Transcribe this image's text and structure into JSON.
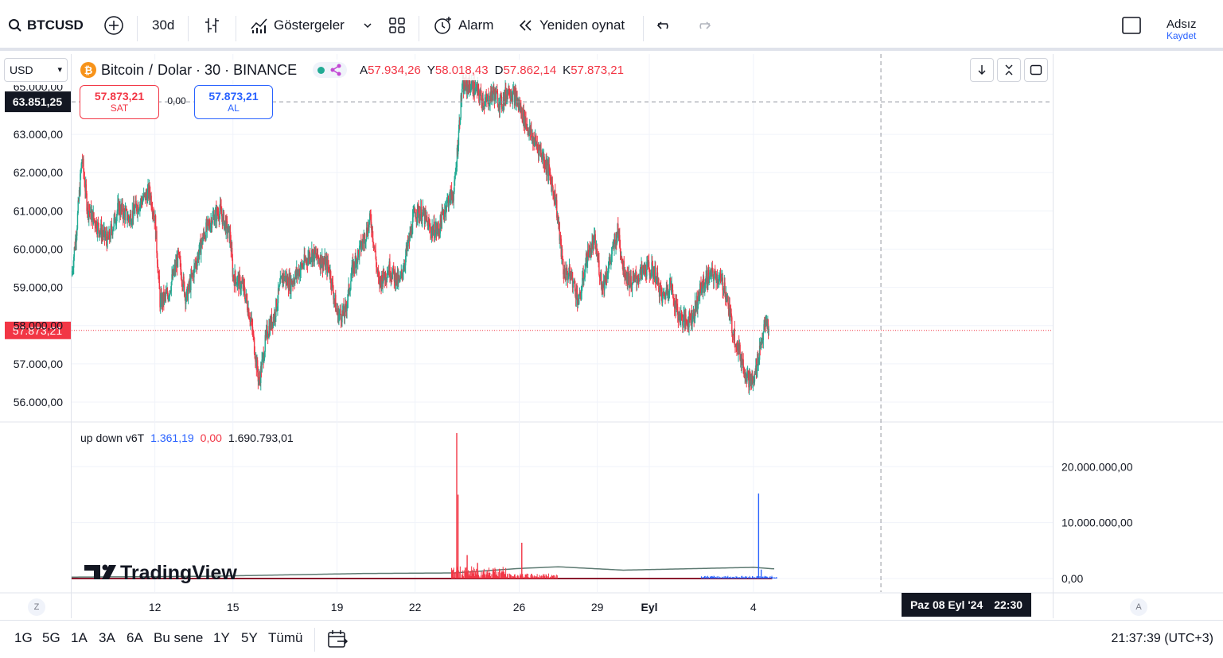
{
  "toolbar": {
    "symbol": "BTCUSD",
    "interval": "30d",
    "indicators_label": "Göstergeler",
    "alert_label": "Alarm",
    "replay_label": "Yeniden oynat",
    "user_name": "Adsız",
    "user_save": "Kaydet"
  },
  "header": {
    "currency": "USD",
    "title": "Bitcoin",
    "sep1": "/",
    "quote": "Dolar · 30 · BINANCE",
    "ohlc": [
      {
        "key": "A",
        "value": "57.934,26"
      },
      {
        "key": "Y",
        "value": "58.018,43"
      },
      {
        "key": "D",
        "value": "57.862,14"
      },
      {
        "key": "K",
        "value": "57.873,21"
      }
    ],
    "sell_price": "57.873,21",
    "sell_label": "SAT",
    "spread": "0,00",
    "buy_price": "57.873,21",
    "buy_label": "AL"
  },
  "indicator": {
    "name": "up down v6T",
    "v1": "1.361,19",
    "v2": "0,00",
    "v3": "1.690.793,01"
  },
  "price_labels": {
    "crosshair": "63.851,25",
    "current": "57.873,21",
    "top_cut": "65.000,00"
  },
  "crosshair_time": {
    "date": "Paz 08 Eyl '24",
    "time": "22:30"
  },
  "watermark": "TradingView",
  "bottom": {
    "ranges": [
      "1G",
      "5G",
      "1A",
      "3A",
      "6A",
      "Bu sene",
      "1Y",
      "5Y",
      "Tümü"
    ],
    "clock": "21:37:39 (UTC+3)",
    "left_axis_btn": "Z",
    "right_axis_btn": "A"
  },
  "colors": {
    "up": "#22ab94",
    "down": "#f23645",
    "blue": "#2962ff"
  },
  "chart_data": [
    {
      "type": "candlestick",
      "title": "Bitcoin / Dolar · 30 · BINANCE",
      "y_ticks": [
        56000,
        57000,
        58000,
        59000,
        60000,
        61000,
        62000,
        63000
      ],
      "ylim": [
        55500,
        65100
      ],
      "x_ticks": [
        {
          "label": "12",
          "day": 12
        },
        {
          "label": "15",
          "day": 15
        },
        {
          "label": "19",
          "day": 19
        },
        {
          "label": "22",
          "day": 22
        },
        {
          "label": "26",
          "day": 26
        },
        {
          "label": "29",
          "day": 29
        },
        {
          "label": "Eyl",
          "day": 31
        },
        {
          "label": "4",
          "day": 35
        }
      ],
      "x_range_days": [
        8.8,
        43.2
      ],
      "price_path": [
        [
          8.8,
          59300
        ],
        [
          9.0,
          60600
        ],
        [
          9.2,
          62400
        ],
        [
          9.4,
          61100
        ],
        [
          9.8,
          60600
        ],
        [
          10.2,
          60200
        ],
        [
          10.6,
          61100
        ],
        [
          11.0,
          60800
        ],
        [
          11.4,
          61200
        ],
        [
          11.8,
          61500
        ],
        [
          12.0,
          60800
        ],
        [
          12.2,
          58600
        ],
        [
          12.5,
          58800
        ],
        [
          12.9,
          59800
        ],
        [
          13.2,
          58700
        ],
        [
          13.6,
          59700
        ],
        [
          13.9,
          60400
        ],
        [
          14.2,
          60800
        ],
        [
          14.5,
          61000
        ],
        [
          14.9,
          60300
        ],
        [
          15.0,
          59300
        ],
        [
          15.4,
          59000
        ],
        [
          15.7,
          58100
        ],
        [
          16.0,
          56500
        ],
        [
          16.3,
          57800
        ],
        [
          16.6,
          58300
        ],
        [
          16.9,
          59300
        ],
        [
          17.2,
          59100
        ],
        [
          17.6,
          59500
        ],
        [
          18.0,
          59900
        ],
        [
          18.4,
          59700
        ],
        [
          18.7,
          59500
        ],
        [
          19.0,
          58300
        ],
        [
          19.3,
          58300
        ],
        [
          19.6,
          59500
        ],
        [
          20.0,
          60200
        ],
        [
          20.3,
          60800
        ],
        [
          20.6,
          59100
        ],
        [
          21.0,
          59500
        ],
        [
          21.4,
          59100
        ],
        [
          21.7,
          60000
        ],
        [
          22.0,
          61000
        ],
        [
          22.3,
          60900
        ],
        [
          22.6,
          60500
        ],
        [
          22.9,
          60500
        ],
        [
          23.2,
          61200
        ],
        [
          23.5,
          61500
        ],
        [
          23.8,
          64200
        ],
        [
          24.1,
          64300
        ],
        [
          24.4,
          64100
        ],
        [
          24.7,
          63800
        ],
        [
          25.0,
          64100
        ],
        [
          25.3,
          63800
        ],
        [
          25.6,
          64200
        ],
        [
          25.9,
          63900
        ],
        [
          26.2,
          63400
        ],
        [
          26.5,
          62900
        ],
        [
          26.8,
          62600
        ],
        [
          27.1,
          62100
        ],
        [
          27.4,
          61300
        ],
        [
          27.7,
          59400
        ],
        [
          28.0,
          59300
        ],
        [
          28.3,
          58600
        ],
        [
          28.6,
          59800
        ],
        [
          28.9,
          60200
        ],
        [
          29.2,
          59000
        ],
        [
          29.5,
          59700
        ],
        [
          29.8,
          60500
        ],
        [
          30.0,
          59500
        ],
        [
          30.3,
          59100
        ],
        [
          30.6,
          59300
        ],
        [
          30.9,
          59500
        ],
        [
          31.2,
          59400
        ],
        [
          31.5,
          58700
        ],
        [
          31.8,
          59100
        ],
        [
          32.1,
          58300
        ],
        [
          32.4,
          58100
        ],
        [
          32.7,
          58300
        ],
        [
          33.0,
          59000
        ],
        [
          33.3,
          59300
        ],
        [
          33.6,
          59300
        ],
        [
          33.9,
          59000
        ],
        [
          34.2,
          57900
        ],
        [
          34.5,
          57200
        ],
        [
          34.8,
          56600
        ],
        [
          35.0,
          56500
        ],
        [
          35.3,
          57600
        ],
        [
          35.5,
          58100
        ],
        [
          35.6,
          57900
        ]
      ],
      "current_price": 57873.21,
      "crosshair_price": 63851.25,
      "crosshair_day": 39.9
    },
    {
      "type": "bar",
      "title": "up down v6T",
      "y_ticks": [
        0,
        10000000,
        20000000
      ],
      "ylim": [
        0,
        27000000
      ],
      "spikes": [
        {
          "day": 23.6,
          "value": 26000000,
          "series": "down"
        },
        {
          "day": 23.65,
          "value": 15000000,
          "series": "down"
        },
        {
          "day": 24.0,
          "value": 4200000,
          "series": "down"
        },
        {
          "day": 24.4,
          "value": 2800000,
          "series": "down"
        },
        {
          "day": 25.0,
          "value": 1800000,
          "series": "down"
        },
        {
          "day": 26.1,
          "value": 6400000,
          "series": "down"
        },
        {
          "day": 35.2,
          "value": 15200000,
          "series": "up"
        },
        {
          "day": 35.3,
          "value": 1600000,
          "series": "up"
        }
      ],
      "baseline": [
        [
          8.8,
          250000
        ],
        [
          14.0,
          400000
        ],
        [
          20.0,
          900000
        ],
        [
          23.5,
          1000000
        ],
        [
          26.0,
          1800000
        ],
        [
          27.5,
          2100000
        ],
        [
          30.0,
          1500000
        ],
        [
          33.0,
          1800000
        ],
        [
          35.0,
          2000000
        ],
        [
          35.9,
          1700000
        ]
      ]
    }
  ]
}
